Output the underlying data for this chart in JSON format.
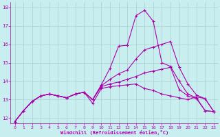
{
  "title": "",
  "xlabel": "Windchill (Refroidissement éolien,°C)",
  "ylabel": "",
  "bg_color": "#c8eef0",
  "line_color": "#aa00aa",
  "grid_color": "#aacccc",
  "xlim": [
    -0.5,
    23.5
  ],
  "ylim": [
    11.7,
    18.3
  ],
  "xticks": [
    0,
    1,
    2,
    3,
    4,
    5,
    6,
    7,
    8,
    9,
    10,
    11,
    12,
    13,
    14,
    15,
    16,
    17,
    18,
    19,
    20,
    21,
    22,
    23
  ],
  "yticks": [
    12,
    13,
    14,
    15,
    16,
    17,
    18
  ],
  "series": [
    [
      11.8,
      12.4,
      12.9,
      13.2,
      13.3,
      13.2,
      13.1,
      13.3,
      13.4,
      12.8,
      13.6,
      13.7,
      13.75,
      13.8,
      13.85,
      13.6,
      13.5,
      13.3,
      13.2,
      13.1,
      13.0,
      13.15,
      13.05,
      12.35
    ],
    [
      11.8,
      12.4,
      12.9,
      13.2,
      13.3,
      13.2,
      13.1,
      13.3,
      13.4,
      13.0,
      13.8,
      14.7,
      15.9,
      15.95,
      17.55,
      17.85,
      17.25,
      15.0,
      14.8,
      14.0,
      13.3,
      13.1,
      12.4,
      12.35
    ],
    [
      11.8,
      12.4,
      12.9,
      13.2,
      13.3,
      13.2,
      13.1,
      13.3,
      13.4,
      13.0,
      13.75,
      14.1,
      14.4,
      14.6,
      15.2,
      15.7,
      15.85,
      16.0,
      16.15,
      14.75,
      13.85,
      13.25,
      13.05,
      12.35
    ],
    [
      11.8,
      12.4,
      12.9,
      13.2,
      13.3,
      13.2,
      13.1,
      13.3,
      13.4,
      13.0,
      13.7,
      13.85,
      13.95,
      14.1,
      14.25,
      14.45,
      14.55,
      14.65,
      14.75,
      13.55,
      13.2,
      13.05,
      12.4,
      12.35
    ]
  ]
}
